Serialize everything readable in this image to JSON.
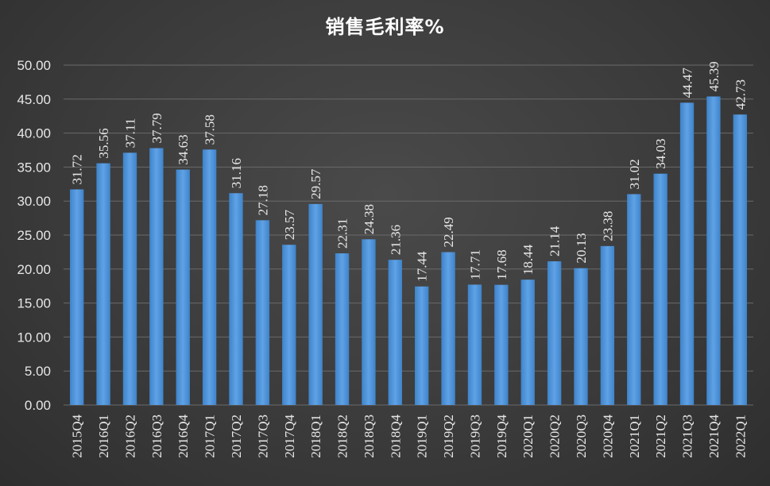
{
  "chart_data": {
    "type": "bar",
    "title": "销售毛利率%",
    "xlabel": "",
    "ylabel": "",
    "ylim": [
      0,
      50
    ],
    "yticks": [
      "0.00",
      "5.00",
      "10.00",
      "15.00",
      "20.00",
      "25.00",
      "30.00",
      "35.00",
      "40.00",
      "45.00",
      "50.00"
    ],
    "grid": true,
    "legend": "none",
    "bar_color": "#4f93d8",
    "categories": [
      "2015Q4",
      "2016Q1",
      "2016Q2",
      "2016Q3",
      "2016Q4",
      "2017Q1",
      "2017Q2",
      "2017Q3",
      "2017Q4",
      "2018Q1",
      "2018Q2",
      "2018Q3",
      "2018Q4",
      "2019Q1",
      "2019Q2",
      "2019Q3",
      "2019Q4",
      "2020Q1",
      "2020Q2",
      "2020Q3",
      "2020Q4",
      "2021Q1",
      "2021Q2",
      "2021Q3",
      "2021Q4",
      "2022Q1"
    ],
    "values": [
      31.72,
      35.56,
      37.11,
      37.79,
      34.63,
      37.58,
      31.16,
      27.18,
      23.57,
      29.57,
      22.31,
      24.38,
      21.36,
      17.44,
      22.49,
      17.71,
      17.68,
      18.44,
      21.14,
      20.13,
      23.38,
      31.02,
      34.03,
      44.47,
      45.39,
      42.73
    ],
    "data_labels": [
      "31.72",
      "35.56",
      "37.11",
      "37.79",
      "34.63",
      "37.58",
      "31.16",
      "27.18",
      "23.57",
      "29.57",
      "22.31",
      "24.38",
      "21.36",
      "17.44",
      "22.49",
      "17.71",
      "17.68",
      "18.44",
      "21.14",
      "20.13",
      "23.38",
      "31.02",
      "34.03",
      "44.47",
      "45.39",
      "42.73"
    ]
  }
}
